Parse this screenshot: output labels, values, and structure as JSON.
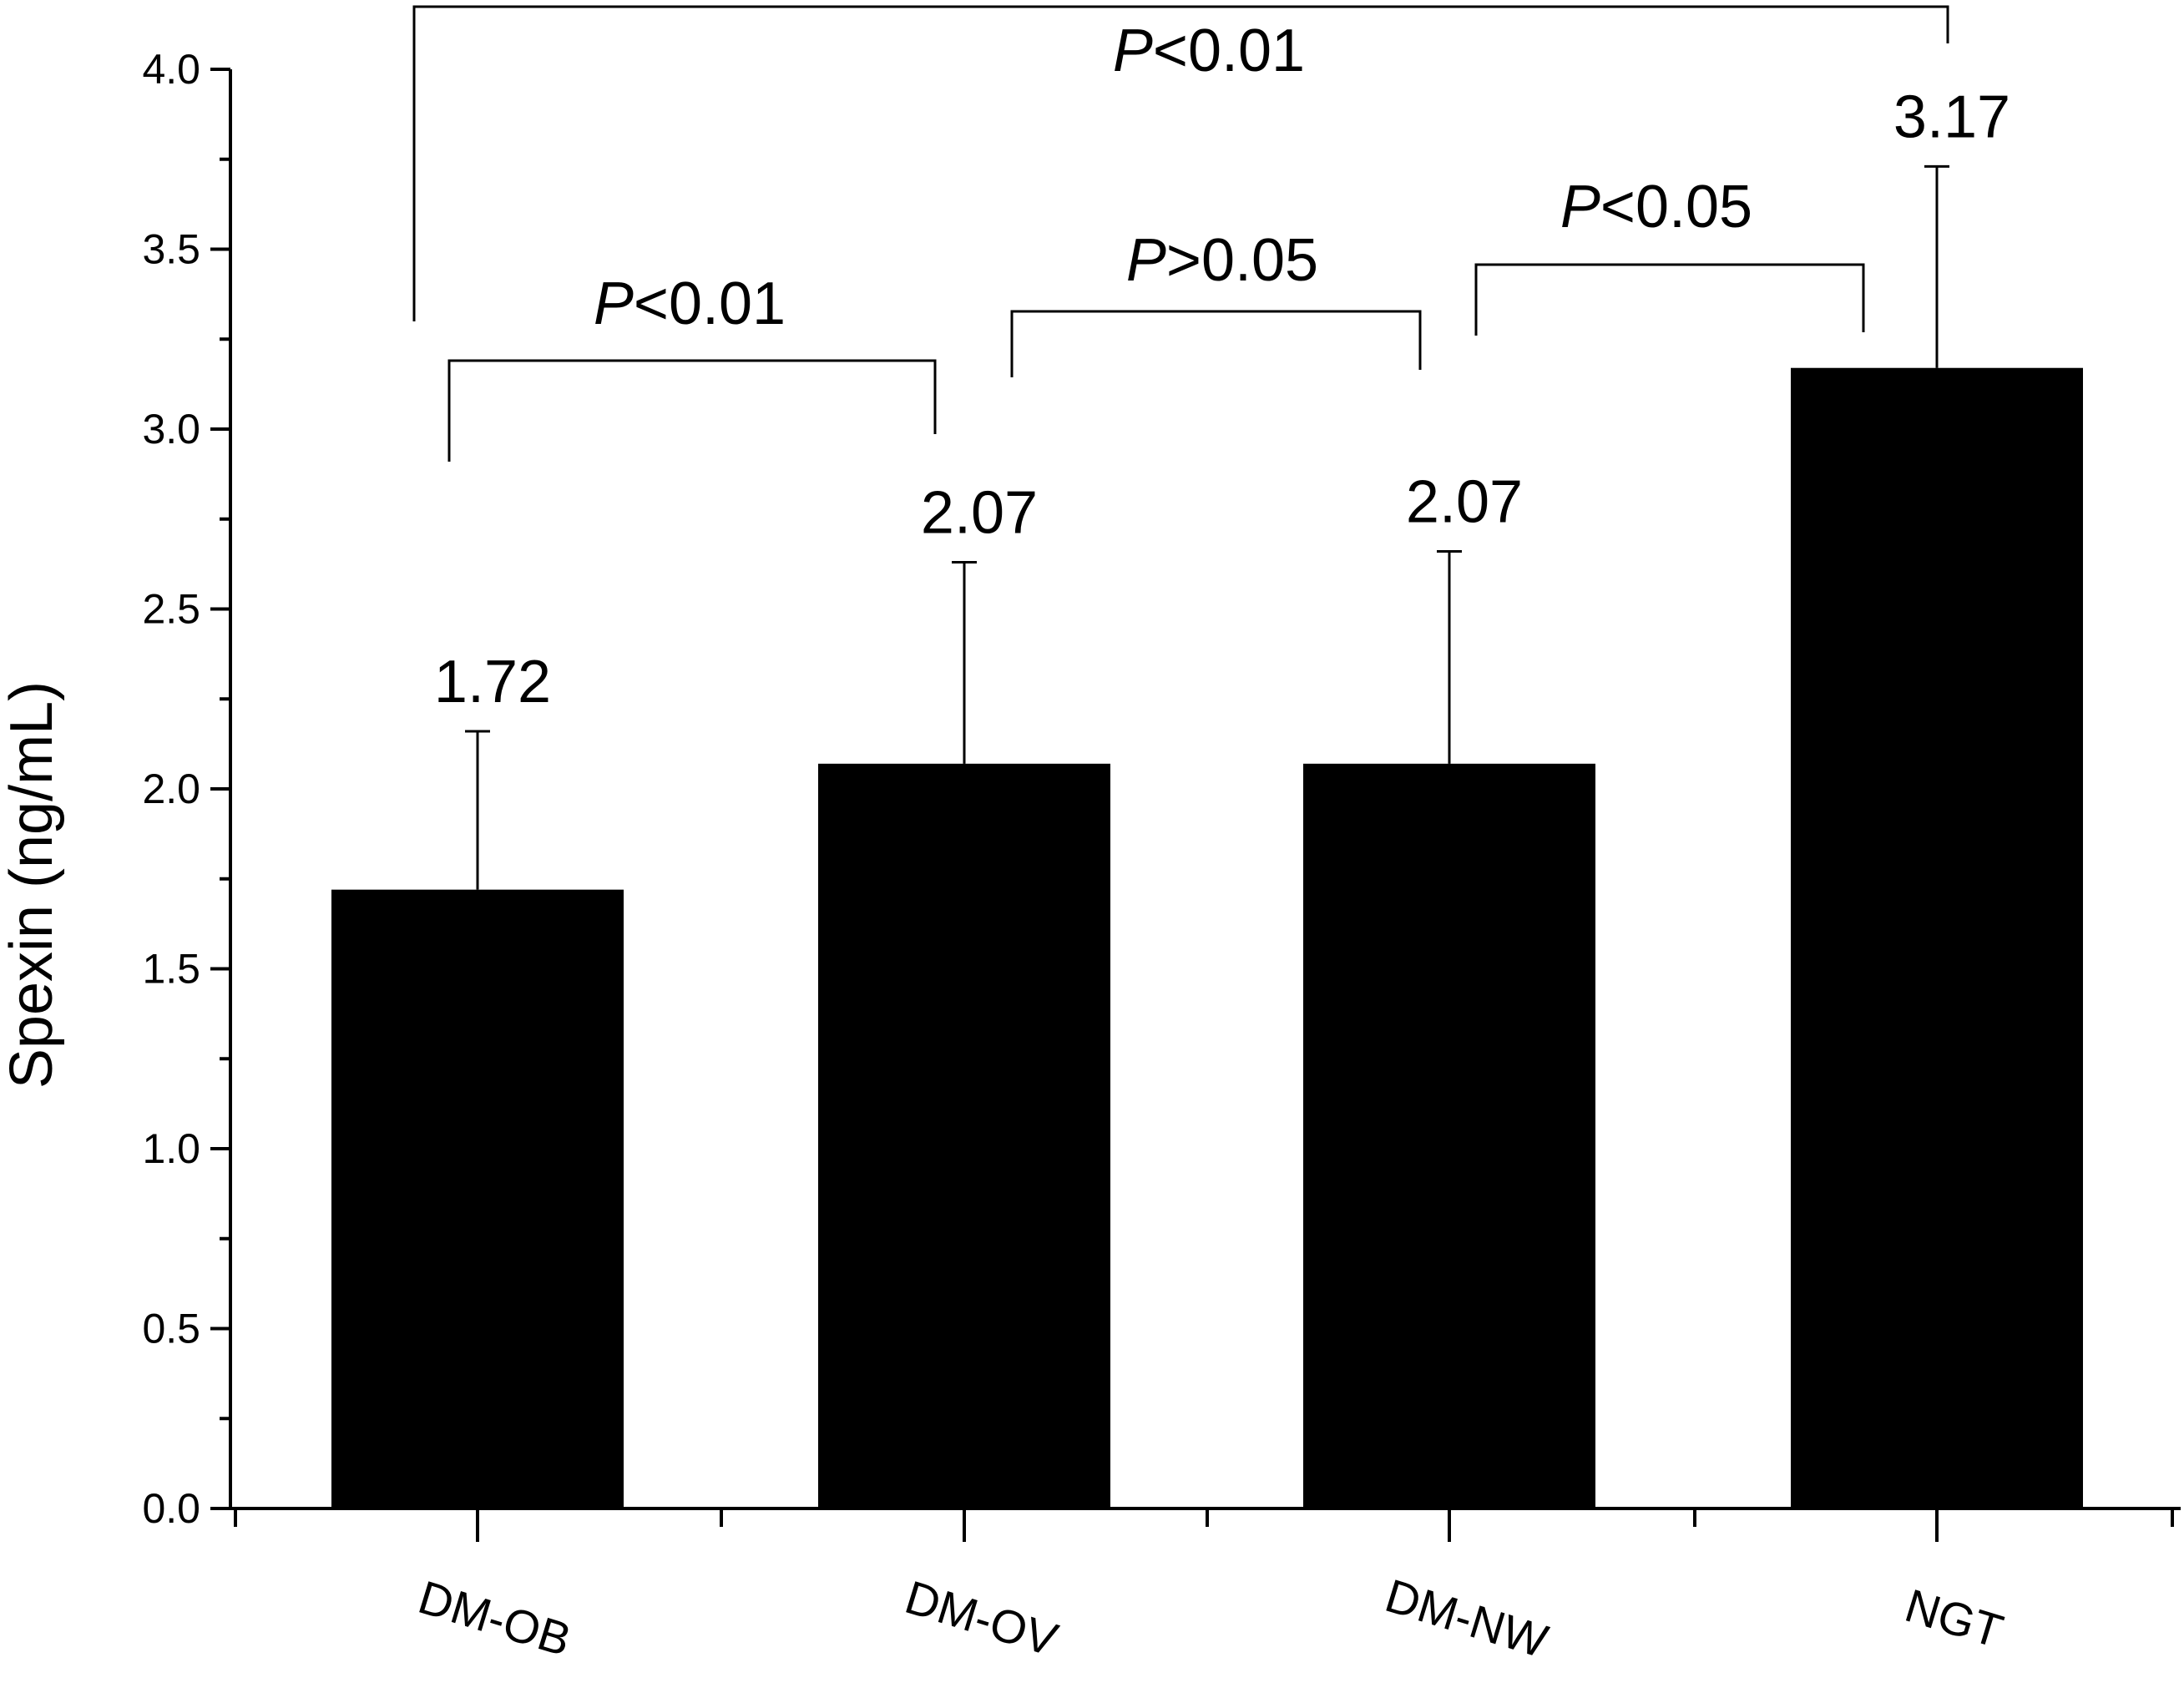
{
  "chart_data": {
    "type": "bar",
    "title": "",
    "xlabel": "",
    "ylabel": "Spexin (ng/mL)",
    "ylim": [
      0,
      4.0
    ],
    "yticks": [
      "0.0",
      "0.5",
      "1.0",
      "1.5",
      "2.0",
      "2.5",
      "3.0",
      "3.5",
      "4.0"
    ],
    "ytick_values": [
      0,
      0.5,
      1.0,
      1.5,
      2.0,
      2.5,
      3.0,
      3.5,
      4.0
    ],
    "categories": [
      "DM-OB",
      "DM-OV",
      "DM-NW",
      "NGT"
    ],
    "values": [
      1.72,
      2.07,
      2.07,
      3.17
    ],
    "value_labels": [
      "1.72",
      "2.07",
      "2.07",
      "3.17"
    ],
    "error_upper": [
      2.16,
      2.63,
      2.66,
      3.73
    ],
    "bar_color": "#000000",
    "grid": false,
    "legend": "none",
    "comparisons": [
      {
        "from": 0,
        "to": 1,
        "symbol": "P",
        "relation": "<0.01"
      },
      {
        "from": 1,
        "to": 2,
        "symbol": "P",
        "relation": ">0.05"
      },
      {
        "from": 2,
        "to": 3,
        "symbol": "P",
        "relation": "<0.05"
      },
      {
        "from": 0,
        "to": 3,
        "symbol": "P",
        "relation": "<0.01"
      }
    ]
  }
}
